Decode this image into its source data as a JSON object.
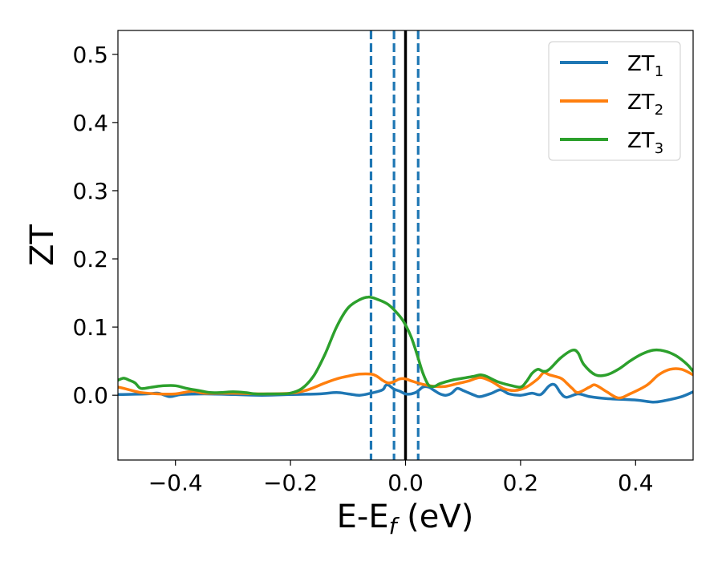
{
  "chart_data": {
    "type": "line",
    "xlabel": {
      "main": "E-E",
      "sub": "f",
      "tail": " (eV)"
    },
    "ylabel": "ZT",
    "xlim": [
      -0.5,
      0.5
    ],
    "ylim": [
      -0.095,
      0.535
    ],
    "xticks": [
      -0.4,
      -0.2,
      0.0,
      0.2,
      0.4
    ],
    "xtick_labels": [
      "−0.4",
      "−0.2",
      "0.0",
      "0.2",
      "0.4"
    ],
    "yticks": [
      0.0,
      0.1,
      0.2,
      0.3,
      0.4,
      0.5
    ],
    "ytick_labels": [
      "0.0",
      "0.1",
      "0.2",
      "0.3",
      "0.4",
      "0.5"
    ],
    "grid": false,
    "legend_position": "top-right",
    "vlines": [
      {
        "x": -0.06,
        "style": "dashed",
        "color": "#1f77b4"
      },
      {
        "x": -0.02,
        "style": "dashed",
        "color": "#1f77b4"
      },
      {
        "x": 0.0,
        "style": "solid",
        "color": "#000000"
      },
      {
        "x": 0.022,
        "style": "dashed",
        "color": "#1f77b4"
      }
    ],
    "series": [
      {
        "name": "ZT",
        "subscript": "1",
        "color": "#1f77b4",
        "points": [
          [
            -0.5,
            0.001
          ],
          [
            -0.45,
            0.002
          ],
          [
            -0.43,
            0.003
          ],
          [
            -0.41,
            -0.002
          ],
          [
            -0.39,
            0.001
          ],
          [
            -0.35,
            0.002
          ],
          [
            -0.3,
            0.001
          ],
          [
            -0.25,
            0.0
          ],
          [
            -0.2,
            0.001
          ],
          [
            -0.15,
            0.002
          ],
          [
            -0.12,
            0.004
          ],
          [
            -0.1,
            0.002
          ],
          [
            -0.08,
            0.0
          ],
          [
            -0.06,
            0.003
          ],
          [
            -0.04,
            0.008
          ],
          [
            -0.035,
            0.014
          ],
          [
            -0.03,
            0.015
          ],
          [
            -0.02,
            0.009
          ],
          [
            -0.01,
            0.006
          ],
          [
            0.0,
            0.002
          ],
          [
            0.01,
            0.002
          ],
          [
            0.02,
            0.005
          ],
          [
            0.03,
            0.012
          ],
          [
            0.04,
            0.012
          ],
          [
            0.05,
            0.007
          ],
          [
            0.06,
            0.002
          ],
          [
            0.07,
            0.0
          ],
          [
            0.08,
            0.003
          ],
          [
            0.09,
            0.01
          ],
          [
            0.1,
            0.007
          ],
          [
            0.12,
            0.0
          ],
          [
            0.13,
            -0.002
          ],
          [
            0.15,
            0.003
          ],
          [
            0.165,
            0.008
          ],
          [
            0.18,
            0.002
          ],
          [
            0.2,
            0.0
          ],
          [
            0.22,
            0.003
          ],
          [
            0.235,
            0.001
          ],
          [
            0.25,
            0.014
          ],
          [
            0.26,
            0.015
          ],
          [
            0.27,
            0.003
          ],
          [
            0.28,
            -0.003
          ],
          [
            0.3,
            0.002
          ],
          [
            0.32,
            -0.002
          ],
          [
            0.35,
            -0.005
          ],
          [
            0.4,
            -0.007
          ],
          [
            0.43,
            -0.01
          ],
          [
            0.45,
            -0.008
          ],
          [
            0.48,
            -0.002
          ],
          [
            0.5,
            0.005
          ]
        ]
      },
      {
        "name": "ZT",
        "subscript": "2",
        "color": "#ff7f0e",
        "points": [
          [
            -0.5,
            0.012
          ],
          [
            -0.48,
            0.008
          ],
          [
            -0.46,
            0.004
          ],
          [
            -0.43,
            0.002
          ],
          [
            -0.4,
            0.002
          ],
          [
            -0.37,
            0.006
          ],
          [
            -0.35,
            0.003
          ],
          [
            -0.3,
            0.003
          ],
          [
            -0.25,
            0.002
          ],
          [
            -0.2,
            0.003
          ],
          [
            -0.17,
            0.008
          ],
          [
            -0.14,
            0.018
          ],
          [
            -0.12,
            0.024
          ],
          [
            -0.1,
            0.028
          ],
          [
            -0.08,
            0.031
          ],
          [
            -0.06,
            0.031
          ],
          [
            -0.05,
            0.028
          ],
          [
            -0.04,
            0.022
          ],
          [
            -0.03,
            0.018
          ],
          [
            -0.02,
            0.02
          ],
          [
            -0.01,
            0.024
          ],
          [
            0.0,
            0.024
          ],
          [
            0.01,
            0.021
          ],
          [
            0.03,
            0.016
          ],
          [
            0.05,
            0.013
          ],
          [
            0.07,
            0.013
          ],
          [
            0.09,
            0.017
          ],
          [
            0.11,
            0.021
          ],
          [
            0.13,
            0.026
          ],
          [
            0.15,
            0.02
          ],
          [
            0.17,
            0.01
          ],
          [
            0.19,
            0.007
          ],
          [
            0.21,
            0.012
          ],
          [
            0.23,
            0.024
          ],
          [
            0.24,
            0.033
          ],
          [
            0.25,
            0.03
          ],
          [
            0.27,
            0.025
          ],
          [
            0.28,
            0.018
          ],
          [
            0.29,
            0.01
          ],
          [
            0.3,
            0.004
          ],
          [
            0.32,
            0.012
          ],
          [
            0.33,
            0.015
          ],
          [
            0.35,
            0.005
          ],
          [
            0.37,
            -0.004
          ],
          [
            0.39,
            0.002
          ],
          [
            0.42,
            0.015
          ],
          [
            0.44,
            0.03
          ],
          [
            0.46,
            0.038
          ],
          [
            0.48,
            0.038
          ],
          [
            0.5,
            0.03
          ]
        ]
      },
      {
        "name": "ZT",
        "subscript": "3",
        "color": "#2ca02c",
        "points": [
          [
            -0.5,
            0.022
          ],
          [
            -0.49,
            0.025
          ],
          [
            -0.48,
            0.022
          ],
          [
            -0.47,
            0.018
          ],
          [
            -0.46,
            0.01
          ],
          [
            -0.44,
            0.012
          ],
          [
            -0.42,
            0.014
          ],
          [
            -0.4,
            0.014
          ],
          [
            -0.38,
            0.01
          ],
          [
            -0.36,
            0.007
          ],
          [
            -0.34,
            0.004
          ],
          [
            -0.32,
            0.004
          ],
          [
            -0.3,
            0.005
          ],
          [
            -0.28,
            0.004
          ],
          [
            -0.26,
            0.002
          ],
          [
            -0.24,
            0.002
          ],
          [
            -0.22,
            0.002
          ],
          [
            -0.2,
            0.003
          ],
          [
            -0.18,
            0.01
          ],
          [
            -0.16,
            0.028
          ],
          [
            -0.14,
            0.06
          ],
          [
            -0.12,
            0.1
          ],
          [
            -0.1,
            0.128
          ],
          [
            -0.08,
            0.14
          ],
          [
            -0.065,
            0.144
          ],
          [
            -0.05,
            0.141
          ],
          [
            -0.03,
            0.133
          ],
          [
            -0.01,
            0.116
          ],
          [
            0.0,
            0.103
          ],
          [
            0.01,
            0.085
          ],
          [
            0.02,
            0.06
          ],
          [
            0.03,
            0.033
          ],
          [
            0.04,
            0.015
          ],
          [
            0.05,
            0.013
          ],
          [
            0.06,
            0.017
          ],
          [
            0.08,
            0.022
          ],
          [
            0.1,
            0.025
          ],
          [
            0.12,
            0.028
          ],
          [
            0.13,
            0.03
          ],
          [
            0.14,
            0.028
          ],
          [
            0.16,
            0.02
          ],
          [
            0.18,
            0.015
          ],
          [
            0.2,
            0.012
          ],
          [
            0.21,
            0.02
          ],
          [
            0.22,
            0.032
          ],
          [
            0.23,
            0.038
          ],
          [
            0.24,
            0.035
          ],
          [
            0.25,
            0.038
          ],
          [
            0.27,
            0.055
          ],
          [
            0.29,
            0.066
          ],
          [
            0.3,
            0.062
          ],
          [
            0.31,
            0.045
          ],
          [
            0.33,
            0.03
          ],
          [
            0.35,
            0.03
          ],
          [
            0.37,
            0.038
          ],
          [
            0.39,
            0.05
          ],
          [
            0.41,
            0.06
          ],
          [
            0.43,
            0.066
          ],
          [
            0.45,
            0.065
          ],
          [
            0.47,
            0.058
          ],
          [
            0.49,
            0.045
          ],
          [
            0.5,
            0.035
          ]
        ]
      }
    ]
  }
}
